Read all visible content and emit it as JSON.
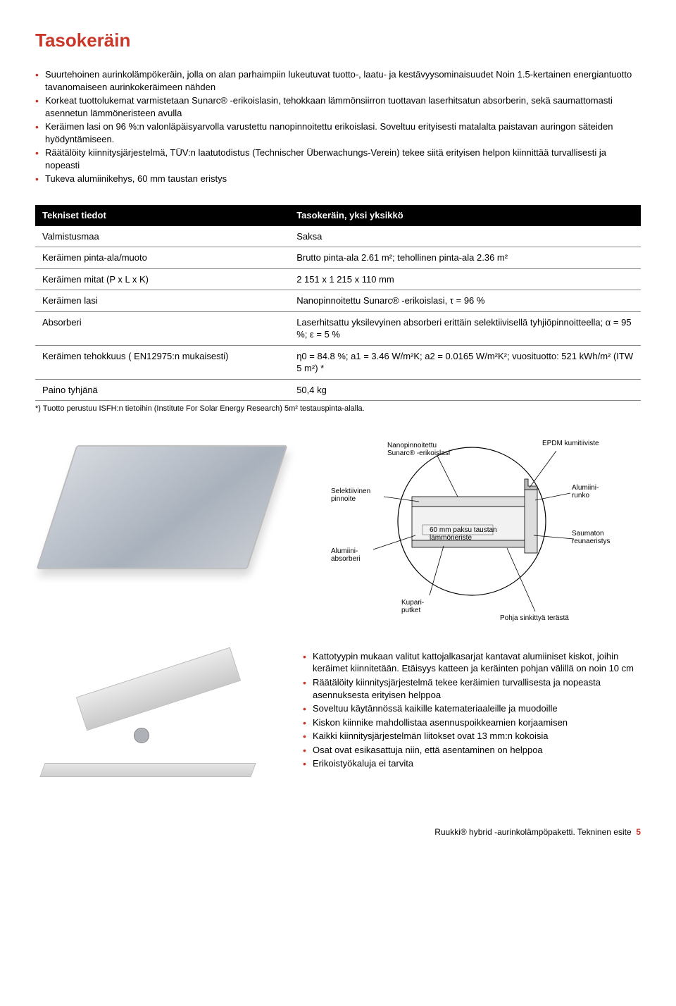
{
  "colors": {
    "accent": "#c83728",
    "text": "#000000",
    "background": "#ffffff",
    "table_header_bg": "#000000",
    "table_header_fg": "#ffffff",
    "rule": "#888888"
  },
  "typography": {
    "body_font": "Arial, Helvetica, sans-serif",
    "body_size_pt": 10,
    "h1_size_pt": 20,
    "footnote_size_pt": 8
  },
  "title": "Tasokeräin",
  "intro_bullets": [
    "Suurtehoinen aurinkolämpökeräin, jolla on alan parhaimpiin lukeutuvat tuotto-, laatu- ja kestävyysominaisuudet Noin 1.5-kertainen energiantuotto tavanomaiseen aurinkokeräimeen nähden",
    "Korkeat tuottolukemat varmistetaan Sunarc® -erikoislasin, tehokkaan lämmönsiirron tuottavan laserhitsatun absorberin, sekä saumattomasti asennetun lämmöneristeen avulla",
    "Keräimen lasi on 96 %:n valonläpäisyarvolla varustettu nanopinnoitettu erikoislasi. Soveltuu erityisesti matalalta paistavan auringon säteiden hyödyntämiseen.",
    "Räätälöity kiinnitysjärjestelmä, TÜV:n laatutodistus (Technischer Überwachungs-Verein) tekee siitä erityisen helpon kiinnittää turvallisesti ja nopeasti",
    "Tukeva alumiinikehys, 60 mm taustan eristys"
  ],
  "spec_table": {
    "header_left": "Tekniset tiedot",
    "header_right": "Tasokeräin, yksi yksikkö",
    "rows": [
      {
        "label": "Valmistusmaa",
        "value": "Saksa"
      },
      {
        "label": "Keräimen pinta-ala/muoto",
        "value": "Brutto pinta-ala 2.61 m²; tehollinen pinta-ala 2.36 m²"
      },
      {
        "label": "Keräimen mitat (P x L x K)",
        "value": "2 151 x 1 215 x 110 mm"
      },
      {
        "label": "Keräimen lasi",
        "value": "Nanopinnoitettu Sunarc® -erikoislasi, τ = 96 %"
      },
      {
        "label": "Absorberi",
        "value": "Laserhitsattu yksilevyinen absorberi erittäin selektiivisellä tyhjiöpinnoitteella; α = 95 %; ε = 5 %"
      },
      {
        "label": "Keräimen tehokkuus ( EN12975:n mukaisesti)",
        "value": "η0 = 84.8 %; a1 = 3.46 W/m²K; a2 = 0.0165 W/m²K²; vuosituotto: 521 kWh/m² (ITW 5 m²) *"
      },
      {
        "label": "Paino tyhjänä",
        "value": "50,4 kg"
      }
    ],
    "footnote": "*) Tuotto perustuu ISFH:n tietoihin (Institute For Solar Energy Research) 5m² testauspinta-alalla."
  },
  "diagram": {
    "type": "infographic",
    "labels": {
      "nanopinnoitettu": "Nanopinnoitettu\nSunarc® -erikoislasi",
      "epdm": "EPDM kumitiiviste",
      "selektiivinen": "Selektiivinen\npinnoite",
      "alumiinirunko": "Alumiini-\nrunko",
      "alumiiniabsorberi": "Alumiini-\nabsorberi",
      "saumaton": "Saumaton\nreunaeristys",
      "taustan": "60 mm paksu taustan\nlämmöneriste",
      "kupariputket": "Kupari-\nputket",
      "pohja": "Pohja sinkittyä terästä"
    },
    "circle_stroke": "#000000",
    "cross_section_fill": "#e0e0e0",
    "cross_section_stroke": "#000000"
  },
  "mount_bullets": [
    "Kattotyypin mukaan valitut kattojalkasarjat kantavat alumiiniset kiskot, joihin keräimet kiinnitetään. Etäisyys katteen ja keräinten pohjan välillä on noin 10 cm",
    "Räätälöity kiinnitysjärjestelmä tekee keräimien turvallisesta ja nopeasta asennuksesta erityisen helppoa",
    "Soveltuu käytännössä kaikille katemateriaaleille ja muodoille",
    "Kiskon kiinnike mahdollistaa asennuspoikkeamien korjaamisen",
    "Kaikki kiinnitysjärjestelmän liitokset ovat 13 mm:n kokoisia",
    "Osat ovat esikasattuja niin, että asentaminen on helppoa",
    "Erikoistyökaluja ei tarvita"
  ],
  "footer": {
    "text": "Ruukki® hybrid -aurinkolämpöpaketti. Tekninen esite",
    "page": "5"
  }
}
